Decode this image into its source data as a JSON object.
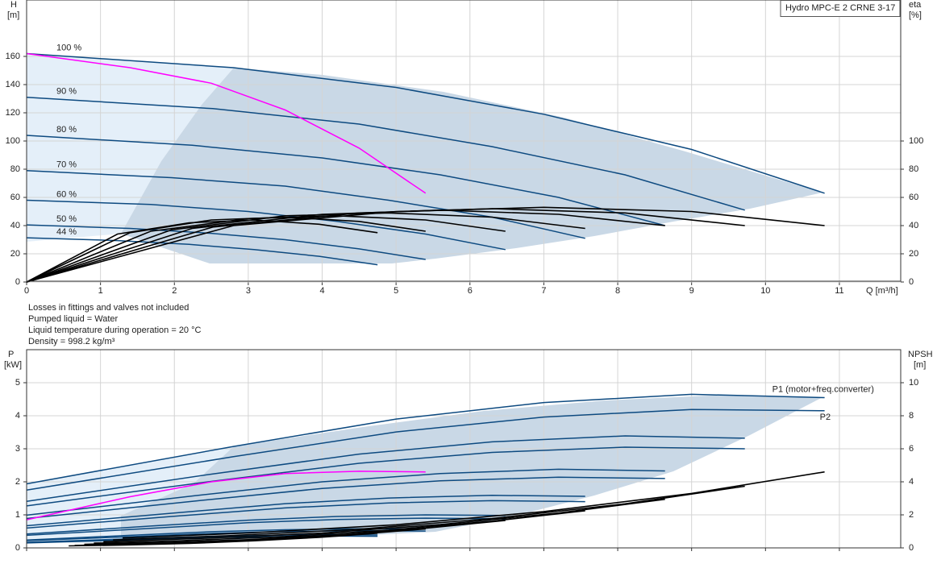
{
  "title": "Hydro MPC-E 2 CRNE 3-17",
  "notes": [
    "Losses in fittings and valves not included",
    "Pumped liquid = Water",
    "Liquid temperature during operation = 20 °C",
    "Density = 998.2 kg/m³"
  ],
  "chart_data": [
    {
      "type": "line",
      "ylabel": "H",
      "yunit": "[m]",
      "y2label": "eta",
      "y2unit": "[%]",
      "xlabel": "Q [m³/h]",
      "xlim": [
        0,
        11.83
      ],
      "xticks": [
        0,
        1,
        2,
        3,
        4,
        5,
        6,
        7,
        8,
        9,
        10,
        11
      ],
      "ylim": [
        0,
        200
      ],
      "yticks": [
        0,
        20,
        40,
        60,
        80,
        100,
        120,
        140,
        160
      ],
      "y2lim": [
        0,
        200
      ],
      "y2ticks": [
        0,
        20,
        40,
        60,
        80,
        100
      ],
      "grid": true,
      "series": [
        {
          "name": "100 %",
          "color": "#0d4a80",
          "x": [
            0,
            2.8,
            5,
            7,
            9,
            10.8
          ],
          "values": [
            162,
            152,
            138,
            119,
            94,
            63
          ]
        },
        {
          "name": "90 %",
          "color": "#0d4a80",
          "x": [
            0,
            2.52,
            4.5,
            6.3,
            8.1,
            9.72
          ],
          "values": [
            131,
            123,
            112,
            96,
            76,
            51
          ]
        },
        {
          "name": "80 %",
          "color": "#0d4a80",
          "x": [
            0,
            2.24,
            4,
            5.6,
            7.2,
            8.64
          ],
          "values": [
            104,
            97,
            88,
            76,
            60,
            40
          ]
        },
        {
          "name": "70 %",
          "color": "#0d4a80",
          "x": [
            0,
            1.96,
            3.5,
            4.9,
            6.3,
            7.56
          ],
          "values": [
            79,
            74,
            68,
            58,
            46,
            31
          ]
        },
        {
          "name": "60 %",
          "color": "#0d4a80",
          "x": [
            0,
            1.68,
            3,
            4.2,
            5.4,
            6.48
          ],
          "values": [
            58,
            55,
            50,
            43,
            34,
            23
          ]
        },
        {
          "name": "50 %",
          "color": "#0d4a80",
          "x": [
            0,
            1.4,
            2.5,
            3.5,
            4.5,
            5.4
          ],
          "values": [
            40.5,
            38,
            34.5,
            30,
            23.5,
            16
          ]
        },
        {
          "name": "44 %",
          "color": "#0d4a80",
          "x": [
            0,
            1.23,
            2.2,
            3.08,
            3.96,
            4.75
          ],
          "values": [
            31.4,
            29.4,
            26.7,
            23,
            18.2,
            12.2
          ]
        },
        {
          "color": "#ff00ff",
          "x": [
            0,
            1.4,
            2.5,
            3.5,
            4.5,
            5.4
          ],
          "values": [
            162,
            152,
            141,
            122,
            95,
            63
          ]
        },
        {
          "color": "#000000",
          "axis": "y2",
          "x": [
            0,
            2.8,
            5,
            7,
            9,
            10.8
          ],
          "values": [
            0,
            40,
            50,
            53,
            50,
            40
          ]
        },
        {
          "color": "#000000",
          "axis": "y2",
          "x": [
            0,
            2.52,
            4.5,
            6.3,
            8.1,
            9.72
          ],
          "values": [
            0,
            39,
            49,
            52,
            49,
            40
          ]
        },
        {
          "color": "#000000",
          "axis": "y2",
          "x": [
            0,
            2.24,
            4,
            5.6,
            7.2,
            8.64
          ],
          "values": [
            0,
            38,
            48,
            51,
            48,
            40
          ]
        },
        {
          "color": "#000000",
          "axis": "y2",
          "x": [
            0,
            1.96,
            3.5,
            4.9,
            6.3,
            7.56
          ],
          "values": [
            0,
            37,
            47,
            49,
            46,
            38
          ]
        },
        {
          "color": "#000000",
          "axis": "y2",
          "x": [
            0,
            1.68,
            3,
            4.2,
            5.4,
            6.48
          ],
          "values": [
            0,
            36,
            45,
            47,
            44,
            36
          ]
        },
        {
          "color": "#000000",
          "axis": "y2",
          "x": [
            0,
            1.4,
            2.5,
            3.5,
            4.5,
            5.4
          ],
          "values": [
            0,
            35,
            44,
            46,
            43,
            36
          ]
        },
        {
          "color": "#000000",
          "axis": "y2",
          "x": [
            0,
            1.23,
            2.2,
            3.08,
            3.96,
            4.75
          ],
          "values": [
            0,
            34,
            42,
            44,
            41,
            35
          ]
        }
      ]
    },
    {
      "type": "line",
      "ylabel": "P",
      "yunit": "[kW]",
      "y2label": "NPSH",
      "y2unit": "[m]",
      "xlim": [
        0,
        11.83
      ],
      "ylim": [
        0,
        6
      ],
      "yticks": [
        0,
        1,
        2,
        3,
        4,
        5
      ],
      "y2lim": [
        0,
        12
      ],
      "y2ticks": [
        0,
        2,
        4,
        6,
        8,
        10
      ],
      "grid": true,
      "series": [
        {
          "name": "P1 (motor+freq.converter)",
          "color": "#0d4a80",
          "x": [
            0,
            2.8,
            5,
            7,
            9,
            10.8
          ],
          "values": [
            1.94,
            3.07,
            3.9,
            4.4,
            4.65,
            4.55
          ]
        },
        {
          "name": "P2",
          "color": "#0d4a80",
          "x": [
            0,
            2.8,
            5,
            7,
            9,
            10.8
          ],
          "values": [
            1.75,
            2.76,
            3.51,
            3.96,
            4.19,
            4.15
          ]
        },
        {
          "color": "#0d4a80",
          "x": [
            0,
            2.52,
            4.5,
            6.3,
            8.1,
            9.72
          ],
          "values": [
            1.41,
            2.24,
            2.84,
            3.21,
            3.39,
            3.32
          ]
        },
        {
          "color": "#0d4a80",
          "x": [
            0,
            2.52,
            4.5,
            6.3,
            8.1,
            9.72
          ],
          "values": [
            1.27,
            2.02,
            2.56,
            2.89,
            3.05,
            3.0
          ]
        },
        {
          "color": "#0d4a80",
          "x": [
            0,
            2.24,
            4,
            5.6,
            7.2,
            8.64
          ],
          "values": [
            0.99,
            1.57,
            2.0,
            2.25,
            2.38,
            2.33
          ]
        },
        {
          "color": "#0d4a80",
          "x": [
            0,
            2.24,
            4,
            5.6,
            7.2,
            8.64
          ],
          "values": [
            0.89,
            1.41,
            1.8,
            2.03,
            2.14,
            2.1
          ]
        },
        {
          "color": "#0d4a80",
          "x": [
            0,
            1.96,
            3.5,
            4.9,
            6.3,
            7.56
          ],
          "values": [
            0.67,
            1.05,
            1.34,
            1.51,
            1.59,
            1.56
          ]
        },
        {
          "color": "#0d4a80",
          "x": [
            0,
            1.96,
            3.5,
            4.9,
            6.3,
            7.56
          ],
          "values": [
            0.6,
            0.95,
            1.21,
            1.36,
            1.43,
            1.4
          ]
        },
        {
          "color": "#0d4a80",
          "x": [
            0,
            1.68,
            3,
            4.2,
            5.4,
            6.48
          ],
          "values": [
            0.42,
            0.66,
            0.84,
            0.95,
            1.0,
            0.98
          ]
        },
        {
          "color": "#0d4a80",
          "x": [
            0,
            1.68,
            3,
            4.2,
            5.4,
            6.48
          ],
          "values": [
            0.38,
            0.59,
            0.76,
            0.86,
            0.9,
            0.88
          ]
        },
        {
          "color": "#0d4a80",
          "x": [
            0,
            1.4,
            2.5,
            3.5,
            4.5,
            5.4
          ],
          "values": [
            0.24,
            0.38,
            0.49,
            0.55,
            0.58,
            0.57
          ]
        },
        {
          "color": "#0d4a80",
          "x": [
            0,
            1.4,
            2.5,
            3.5,
            4.5,
            5.4
          ],
          "values": [
            0.22,
            0.34,
            0.44,
            0.5,
            0.52,
            0.51
          ]
        },
        {
          "color": "#0d4a80",
          "x": [
            0,
            1.23,
            2.2,
            3.08,
            3.96,
            4.75
          ],
          "values": [
            0.17,
            0.26,
            0.33,
            0.37,
            0.4,
            0.39
          ]
        },
        {
          "color": "#0d4a80",
          "x": [
            0,
            1.23,
            2.2,
            3.08,
            3.96,
            4.75
          ],
          "values": [
            0.15,
            0.23,
            0.3,
            0.33,
            0.36,
            0.35
          ]
        },
        {
          "color": "#ff00ff",
          "x": [
            0,
            1.4,
            2.5,
            3.5,
            4.5,
            5.4
          ],
          "values": [
            0.85,
            1.55,
            2.0,
            2.25,
            2.32,
            2.3
          ]
        },
        {
          "color": "#000000",
          "axis": "y2",
          "x": [
            1.3,
            3,
            5,
            7,
            9,
            10.8
          ],
          "values": [
            0.6,
            0.9,
            1.4,
            2.2,
            3.3,
            4.6
          ]
        },
        {
          "color": "#000000",
          "axis": "y2",
          "x": [
            1.17,
            2.7,
            4.5,
            6.3,
            8.1,
            9.72
          ],
          "values": [
            0.49,
            0.73,
            1.13,
            1.78,
            2.67,
            3.73
          ]
        },
        {
          "color": "#000000",
          "axis": "y2",
          "x": [
            1.04,
            2.4,
            4,
            5.6,
            7.2,
            8.64
          ],
          "values": [
            0.38,
            0.58,
            0.9,
            1.41,
            2.11,
            2.94
          ]
        },
        {
          "color": "#000000",
          "axis": "y2",
          "x": [
            0.91,
            2.1,
            3.5,
            4.9,
            6.3,
            7.56
          ],
          "values": [
            0.29,
            0.44,
            0.69,
            1.08,
            1.62,
            2.25
          ]
        },
        {
          "color": "#000000",
          "axis": "y2",
          "x": [
            0.78,
            1.8,
            3,
            4.2,
            5.4,
            6.48
          ],
          "values": [
            0.22,
            0.32,
            0.5,
            0.79,
            1.19,
            1.66
          ]
        },
        {
          "color": "#000000",
          "axis": "y2",
          "x": [
            0.65,
            1.5,
            2.5,
            3.5,
            4.5,
            5.4
          ],
          "values": [
            0.15,
            0.23,
            0.35,
            0.55,
            0.83,
            1.15
          ]
        },
        {
          "color": "#000000",
          "axis": "y2",
          "x": [
            0.57,
            1.32,
            2.2,
            3.08,
            3.96,
            4.75
          ],
          "values": [
            0.12,
            0.17,
            0.27,
            0.43,
            0.64,
            0.89
          ]
        }
      ]
    }
  ]
}
